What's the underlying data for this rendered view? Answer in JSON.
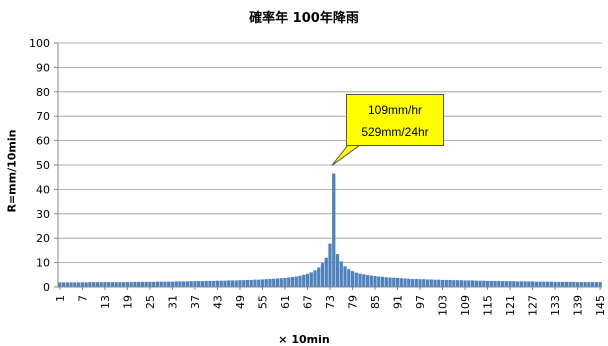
{
  "chart_data": {
    "type": "bar",
    "title": "確率年 100年降雨",
    "xlabel": "× 10min",
    "ylabel": "R=mm/10min",
    "ylim": [
      0,
      100
    ],
    "yticks": [
      0,
      10,
      20,
      30,
      40,
      50,
      60,
      70,
      80,
      90,
      100
    ],
    "xticks": [
      1,
      7,
      13,
      19,
      25,
      31,
      37,
      43,
      49,
      55,
      61,
      67,
      73,
      79,
      85,
      91,
      97,
      103,
      109,
      115,
      121,
      127,
      133,
      139,
      145
    ],
    "x_start": 1,
    "grid": true,
    "bar_color": "#4f81bd",
    "values": [
      1.9,
      1.9,
      1.9,
      1.9,
      1.9,
      1.9,
      1.9,
      1.9,
      2.0,
      2.0,
      2.0,
      2.0,
      2.0,
      2.0,
      2.0,
      2.0,
      2.0,
      2.0,
      2.0,
      2.0,
      2.1,
      2.1,
      2.1,
      2.1,
      2.1,
      2.1,
      2.2,
      2.2,
      2.2,
      2.2,
      2.2,
      2.3,
      2.3,
      2.3,
      2.3,
      2.4,
      2.4,
      2.4,
      2.4,
      2.5,
      2.5,
      2.5,
      2.6,
      2.6,
      2.6,
      2.7,
      2.7,
      2.7,
      2.8,
      2.8,
      2.9,
      2.9,
      3.0,
      3.0,
      3.1,
      3.2,
      3.3,
      3.4,
      3.5,
      3.6,
      3.7,
      3.9,
      4.1,
      4.3,
      4.6,
      5.0,
      5.4,
      6.0,
      6.8,
      8.0,
      9.8,
      12.0,
      17.8,
      46.5,
      13.5,
      10.5,
      8.5,
      7.3,
      6.5,
      5.9,
      5.5,
      5.2,
      4.9,
      4.7,
      4.5,
      4.3,
      4.2,
      4.0,
      3.9,
      3.8,
      3.7,
      3.6,
      3.5,
      3.4,
      3.3,
      3.3,
      3.2,
      3.2,
      3.1,
      3.1,
      3.0,
      3.0,
      2.9,
      2.9,
      2.9,
      2.8,
      2.8,
      2.8,
      2.7,
      2.7,
      2.7,
      2.6,
      2.6,
      2.6,
      2.5,
      2.5,
      2.5,
      2.5,
      2.4,
      2.4,
      2.4,
      2.4,
      2.3,
      2.3,
      2.3,
      2.3,
      2.3,
      2.2,
      2.2,
      2.2,
      2.2,
      2.2,
      2.1,
      2.1,
      2.1,
      2.1,
      2.1,
      2.1,
      2.0,
      2.0,
      2.0,
      2.0,
      2.0,
      2.0,
      2.0
    ],
    "annotation": {
      "lines": [
        "109mm/hr",
        "529mm/24hr"
      ],
      "points_to_x": 74,
      "background": "#ffff00"
    }
  }
}
